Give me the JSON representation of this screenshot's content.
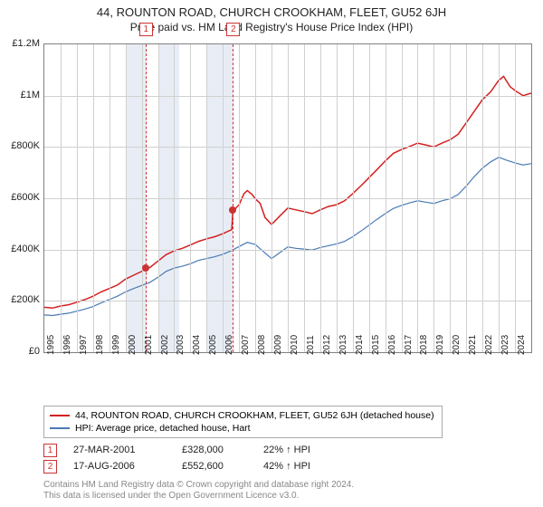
{
  "header": {
    "title": "44, ROUNTON ROAD, CHURCH CROOKHAM, FLEET, GU52 6JH",
    "subtitle": "Price paid vs. HM Land Registry's House Price Index (HPI)"
  },
  "chart": {
    "type": "line",
    "background_color": "#ffffff",
    "border_color": "#808080",
    "grid_color": "#d0d0d0",
    "shade_color": "#e8edf5",
    "dash_color": "#cc3333",
    "ylim": [
      0,
      1200000
    ],
    "yticks": [
      0,
      200000,
      400000,
      600000,
      800000,
      1000000,
      1200000
    ],
    "ytick_labels": [
      "£0",
      "£200K",
      "£400K",
      "£600K",
      "£800K",
      "£1M",
      "£1.2M"
    ],
    "xlim": [
      1995,
      2025
    ],
    "xticks": [
      1995,
      1996,
      1997,
      1998,
      1999,
      2000,
      2001,
      2002,
      2003,
      2004,
      2005,
      2006,
      2007,
      2008,
      2009,
      2010,
      2011,
      2012,
      2013,
      2014,
      2015,
      2016,
      2017,
      2018,
      2019,
      2020,
      2021,
      2022,
      2023,
      2024
    ],
    "shade_ranges": [
      {
        "x0": 2000.0,
        "x1": 2001.25
      },
      {
        "x0": 2002.0,
        "x1": 2003.3
      },
      {
        "x0": 2005.0,
        "x1": 2006.6
      }
    ],
    "markers": [
      {
        "n": "1",
        "x": 2001.23,
        "y": 328000
      },
      {
        "n": "2",
        "x": 2006.62,
        "y": 552600
      }
    ],
    "series1": {
      "label": "44, ROUNTON ROAD, CHURCH CROOKHAM, FLEET, GU52 6JH (detached house)",
      "color": "#d42020",
      "width": 1.5,
      "data": [
        {
          "x": 1995,
          "y": 175000
        },
        {
          "x": 1995.5,
          "y": 172000
        },
        {
          "x": 1996,
          "y": 180000
        },
        {
          "x": 1996.5,
          "y": 185000
        },
        {
          "x": 1997,
          "y": 195000
        },
        {
          "x": 1997.5,
          "y": 205000
        },
        {
          "x": 1998,
          "y": 218000
        },
        {
          "x": 1998.5,
          "y": 235000
        },
        {
          "x": 1999,
          "y": 248000
        },
        {
          "x": 1999.5,
          "y": 262000
        },
        {
          "x": 2000,
          "y": 285000
        },
        {
          "x": 2000.5,
          "y": 300000
        },
        {
          "x": 2001,
          "y": 315000
        },
        {
          "x": 2001.23,
          "y": 328000
        },
        {
          "x": 2001.5,
          "y": 330000
        },
        {
          "x": 2002,
          "y": 355000
        },
        {
          "x": 2002.5,
          "y": 380000
        },
        {
          "x": 2003,
          "y": 395000
        },
        {
          "x": 2003.5,
          "y": 405000
        },
        {
          "x": 2004,
          "y": 418000
        },
        {
          "x": 2004.5,
          "y": 432000
        },
        {
          "x": 2005,
          "y": 442000
        },
        {
          "x": 2005.5,
          "y": 450000
        },
        {
          "x": 2006,
          "y": 462000
        },
        {
          "x": 2006.55,
          "y": 478000
        },
        {
          "x": 2006.62,
          "y": 552600
        },
        {
          "x": 2006.7,
          "y": 555000
        },
        {
          "x": 2007,
          "y": 575000
        },
        {
          "x": 2007.3,
          "y": 618000
        },
        {
          "x": 2007.5,
          "y": 630000
        },
        {
          "x": 2007.8,
          "y": 615000
        },
        {
          "x": 2008,
          "y": 598000
        },
        {
          "x": 2008.3,
          "y": 580000
        },
        {
          "x": 2008.6,
          "y": 525000
        },
        {
          "x": 2009,
          "y": 498000
        },
        {
          "x": 2009.5,
          "y": 530000
        },
        {
          "x": 2010,
          "y": 562000
        },
        {
          "x": 2010.5,
          "y": 555000
        },
        {
          "x": 2011,
          "y": 548000
        },
        {
          "x": 2011.5,
          "y": 540000
        },
        {
          "x": 2012,
          "y": 555000
        },
        {
          "x": 2012.5,
          "y": 568000
        },
        {
          "x": 2013,
          "y": 575000
        },
        {
          "x": 2013.5,
          "y": 590000
        },
        {
          "x": 2014,
          "y": 618000
        },
        {
          "x": 2014.5,
          "y": 648000
        },
        {
          "x": 2015,
          "y": 680000
        },
        {
          "x": 2015.5,
          "y": 712000
        },
        {
          "x": 2016,
          "y": 745000
        },
        {
          "x": 2016.5,
          "y": 775000
        },
        {
          "x": 2017,
          "y": 790000
        },
        {
          "x": 2017.5,
          "y": 802000
        },
        {
          "x": 2018,
          "y": 815000
        },
        {
          "x": 2018.5,
          "y": 808000
        },
        {
          "x": 2019,
          "y": 800000
        },
        {
          "x": 2019.5,
          "y": 815000
        },
        {
          "x": 2020,
          "y": 828000
        },
        {
          "x": 2020.5,
          "y": 850000
        },
        {
          "x": 2021,
          "y": 895000
        },
        {
          "x": 2021.5,
          "y": 940000
        },
        {
          "x": 2022,
          "y": 985000
        },
        {
          "x": 2022.5,
          "y": 1015000
        },
        {
          "x": 2023,
          "y": 1060000
        },
        {
          "x": 2023.3,
          "y": 1075000
        },
        {
          "x": 2023.7,
          "y": 1035000
        },
        {
          "x": 2024,
          "y": 1020000
        },
        {
          "x": 2024.5,
          "y": 1000000
        },
        {
          "x": 2025,
          "y": 1010000
        }
      ]
    },
    "series2": {
      "label": "HPI: Average price, detached house, Hart",
      "color": "#4a7ab5",
      "width": 1.2,
      "data": [
        {
          "x": 1995,
          "y": 145000
        },
        {
          "x": 1995.5,
          "y": 143000
        },
        {
          "x": 1996,
          "y": 148000
        },
        {
          "x": 1996.5,
          "y": 152000
        },
        {
          "x": 1997,
          "y": 160000
        },
        {
          "x": 1997.5,
          "y": 168000
        },
        {
          "x": 1998,
          "y": 178000
        },
        {
          "x": 1998.5,
          "y": 192000
        },
        {
          "x": 1999,
          "y": 205000
        },
        {
          "x": 1999.5,
          "y": 218000
        },
        {
          "x": 2000,
          "y": 235000
        },
        {
          "x": 2000.5,
          "y": 248000
        },
        {
          "x": 2001,
          "y": 260000
        },
        {
          "x": 2001.5,
          "y": 272000
        },
        {
          "x": 2002,
          "y": 292000
        },
        {
          "x": 2002.5,
          "y": 315000
        },
        {
          "x": 2003,
          "y": 328000
        },
        {
          "x": 2003.5,
          "y": 335000
        },
        {
          "x": 2004,
          "y": 345000
        },
        {
          "x": 2004.5,
          "y": 358000
        },
        {
          "x": 2005,
          "y": 365000
        },
        {
          "x": 2005.5,
          "y": 372000
        },
        {
          "x": 2006,
          "y": 382000
        },
        {
          "x": 2006.5,
          "y": 395000
        },
        {
          "x": 2007,
          "y": 412000
        },
        {
          "x": 2007.5,
          "y": 428000
        },
        {
          "x": 2008,
          "y": 420000
        },
        {
          "x": 2008.5,
          "y": 392000
        },
        {
          "x": 2009,
          "y": 365000
        },
        {
          "x": 2009.5,
          "y": 388000
        },
        {
          "x": 2010,
          "y": 410000
        },
        {
          "x": 2010.5,
          "y": 405000
        },
        {
          "x": 2011,
          "y": 402000
        },
        {
          "x": 2011.5,
          "y": 398000
        },
        {
          "x": 2012,
          "y": 408000
        },
        {
          "x": 2012.5,
          "y": 415000
        },
        {
          "x": 2013,
          "y": 422000
        },
        {
          "x": 2013.5,
          "y": 432000
        },
        {
          "x": 2014,
          "y": 450000
        },
        {
          "x": 2014.5,
          "y": 472000
        },
        {
          "x": 2015,
          "y": 495000
        },
        {
          "x": 2015.5,
          "y": 518000
        },
        {
          "x": 2016,
          "y": 540000
        },
        {
          "x": 2016.5,
          "y": 560000
        },
        {
          "x": 2017,
          "y": 572000
        },
        {
          "x": 2017.5,
          "y": 582000
        },
        {
          "x": 2018,
          "y": 590000
        },
        {
          "x": 2018.5,
          "y": 585000
        },
        {
          "x": 2019,
          "y": 580000
        },
        {
          "x": 2019.5,
          "y": 590000
        },
        {
          "x": 2020,
          "y": 598000
        },
        {
          "x": 2020.5,
          "y": 615000
        },
        {
          "x": 2021,
          "y": 648000
        },
        {
          "x": 2021.5,
          "y": 685000
        },
        {
          "x": 2022,
          "y": 718000
        },
        {
          "x": 2022.5,
          "y": 742000
        },
        {
          "x": 2023,
          "y": 760000
        },
        {
          "x": 2023.5,
          "y": 748000
        },
        {
          "x": 2024,
          "y": 738000
        },
        {
          "x": 2024.5,
          "y": 730000
        },
        {
          "x": 2025,
          "y": 735000
        }
      ]
    }
  },
  "legend": {
    "row1": "44, ROUNTON ROAD, CHURCH CROOKHAM, FLEET, GU52 6JH (detached house)",
    "row2": "HPI: Average price, detached house, Hart"
  },
  "sales": [
    {
      "n": "1",
      "date": "27-MAR-2001",
      "price": "£328,000",
      "pct": "22% ↑ HPI"
    },
    {
      "n": "2",
      "date": "17-AUG-2006",
      "price": "£552,600",
      "pct": "42% ↑ HPI"
    }
  ],
  "footer": {
    "line1": "Contains HM Land Registry data © Crown copyright and database right 2024.",
    "line2": "This data is licensed under the Open Government Licence v3.0."
  }
}
